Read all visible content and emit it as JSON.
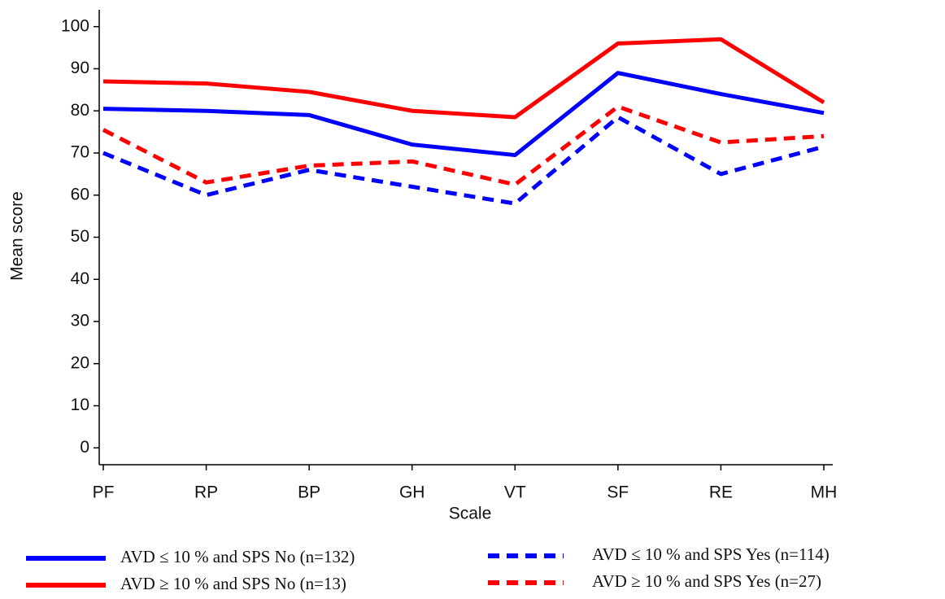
{
  "chart_data": {
    "type": "line",
    "x_label": "Scale",
    "y_label": "Mean score",
    "categories": [
      "PF",
      "RP",
      "BP",
      "GH",
      "VT",
      "SF",
      "RE",
      "MH"
    ],
    "series": [
      {
        "name": "AVD ≤ 10 % and SPS No (n=132)",
        "color": "#0000ff",
        "dash": false,
        "values": [
          80.5,
          80,
          79,
          72,
          69.5,
          89,
          84,
          79.5
        ]
      },
      {
        "name": "AVD ≥ 10 % and SPS No (n=13)",
        "color": "#ff0000",
        "dash": false,
        "values": [
          87,
          86.5,
          84.5,
          80,
          78.5,
          96,
          97,
          82
        ]
      },
      {
        "name": "AVD ≤ 10 % and SPS Yes (n=114)",
        "color": "#0000ff",
        "dash": true,
        "values": [
          70,
          60,
          66,
          62,
          58,
          78.5,
          65,
          71.5
        ]
      },
      {
        "name": "AVD ≥ 10 % and SPS Yes (n=27)",
        "color": "#ff0000",
        "dash": true,
        "values": [
          75.5,
          63,
          67,
          68,
          62.5,
          81,
          72.5,
          74
        ]
      }
    ],
    "ylim": [
      -4,
      104
    ],
    "yticks": [
      0,
      10,
      20,
      30,
      40,
      50,
      60,
      70,
      80,
      90,
      100
    ],
    "grid": false
  }
}
